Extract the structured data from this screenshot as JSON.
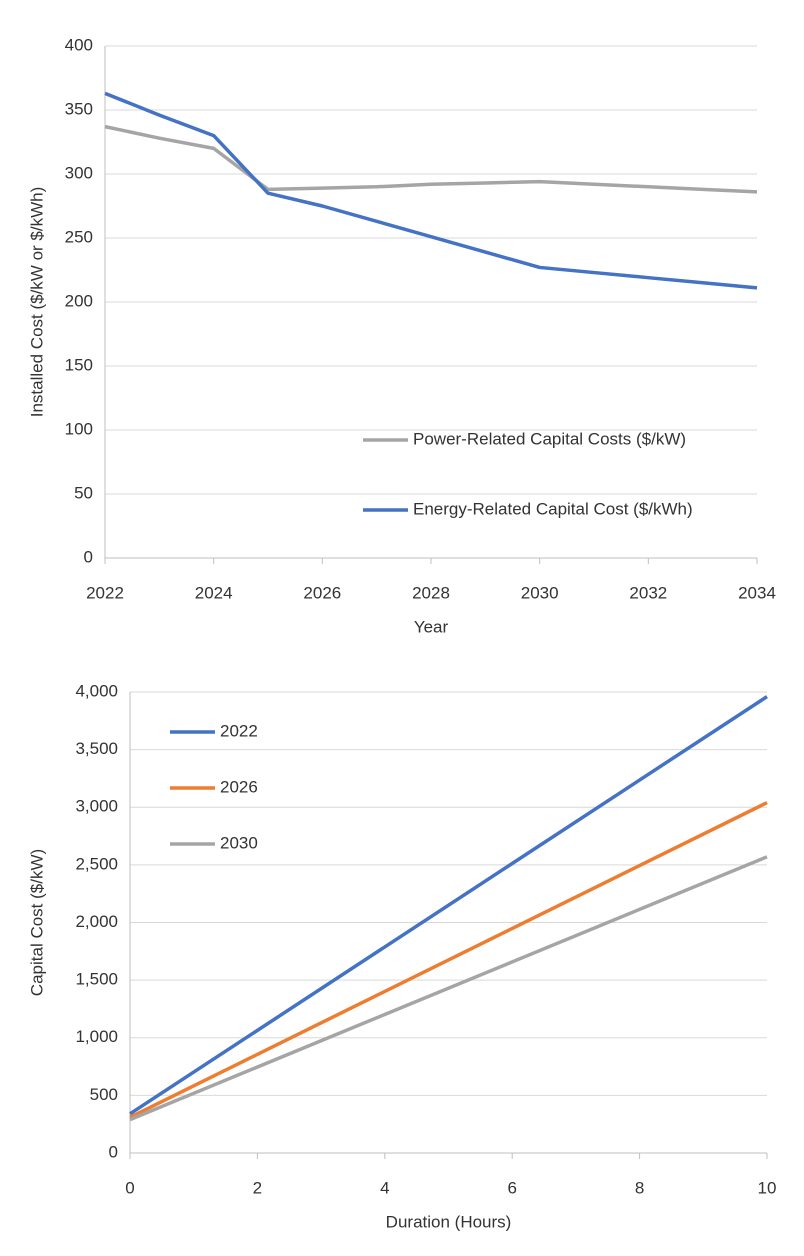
{
  "chart_data": [
    {
      "type": "line",
      "x_label": "Year",
      "y_label": "Installed Cost ($/kW or $/kWh)",
      "x": [
        2022,
        2023,
        2024,
        2025,
        2026,
        2027,
        2028,
        2029,
        2030,
        2031,
        2032,
        2033,
        2034
      ],
      "series": [
        {
          "name": "Power-Related Capital Costs ($/kW)",
          "color": "#a5a5a5",
          "values": [
            337,
            328,
            320,
            288,
            289,
            290,
            292,
            293,
            294,
            292,
            290,
            288,
            286
          ]
        },
        {
          "name": "Energy-Related Capital Cost ($/kWh)",
          "color": "#4472c4",
          "values": [
            363,
            346,
            330,
            285,
            275,
            263,
            251,
            239,
            227,
            223,
            219,
            215,
            211
          ]
        }
      ],
      "xlim": [
        2022,
        2034
      ],
      "xticks": [
        2022,
        2024,
        2026,
        2028,
        2030,
        2032,
        2034
      ],
      "ylim": [
        0,
        400
      ],
      "yticks": [
        0,
        50,
        100,
        150,
        200,
        250,
        300,
        350,
        400
      ],
      "grid": true,
      "legend": "lower right"
    },
    {
      "type": "line",
      "x_label": "Duration (Hours)",
      "y_label": "Capital Cost ($/kW)",
      "x": [
        0,
        10
      ],
      "series": [
        {
          "name": "2022",
          "color": "#4472c4",
          "values": [
            340,
            3960
          ]
        },
        {
          "name": "2026",
          "color": "#ed7d31",
          "values": [
            310,
            3040
          ]
        },
        {
          "name": "2030",
          "color": "#a5a5a5",
          "values": [
            290,
            2570
          ]
        }
      ],
      "xlim": [
        0,
        10
      ],
      "xticks": [
        0,
        2,
        4,
        6,
        8,
        10
      ],
      "ylim": [
        0,
        4000
      ],
      "yticks": [
        0,
        500,
        {
          "value": 1000,
          "label": "1,000"
        },
        {
          "value": 1500,
          "label": "1,500"
        },
        {
          "value": 2000,
          "label": "2,000"
        },
        {
          "value": 2500,
          "label": "2,500"
        },
        {
          "value": 3000,
          "label": "3,000"
        },
        {
          "value": 3500,
          "label": "3,500"
        },
        {
          "value": 4000,
          "label": "4,000"
        }
      ],
      "grid": true,
      "legend": "upper left"
    }
  ]
}
